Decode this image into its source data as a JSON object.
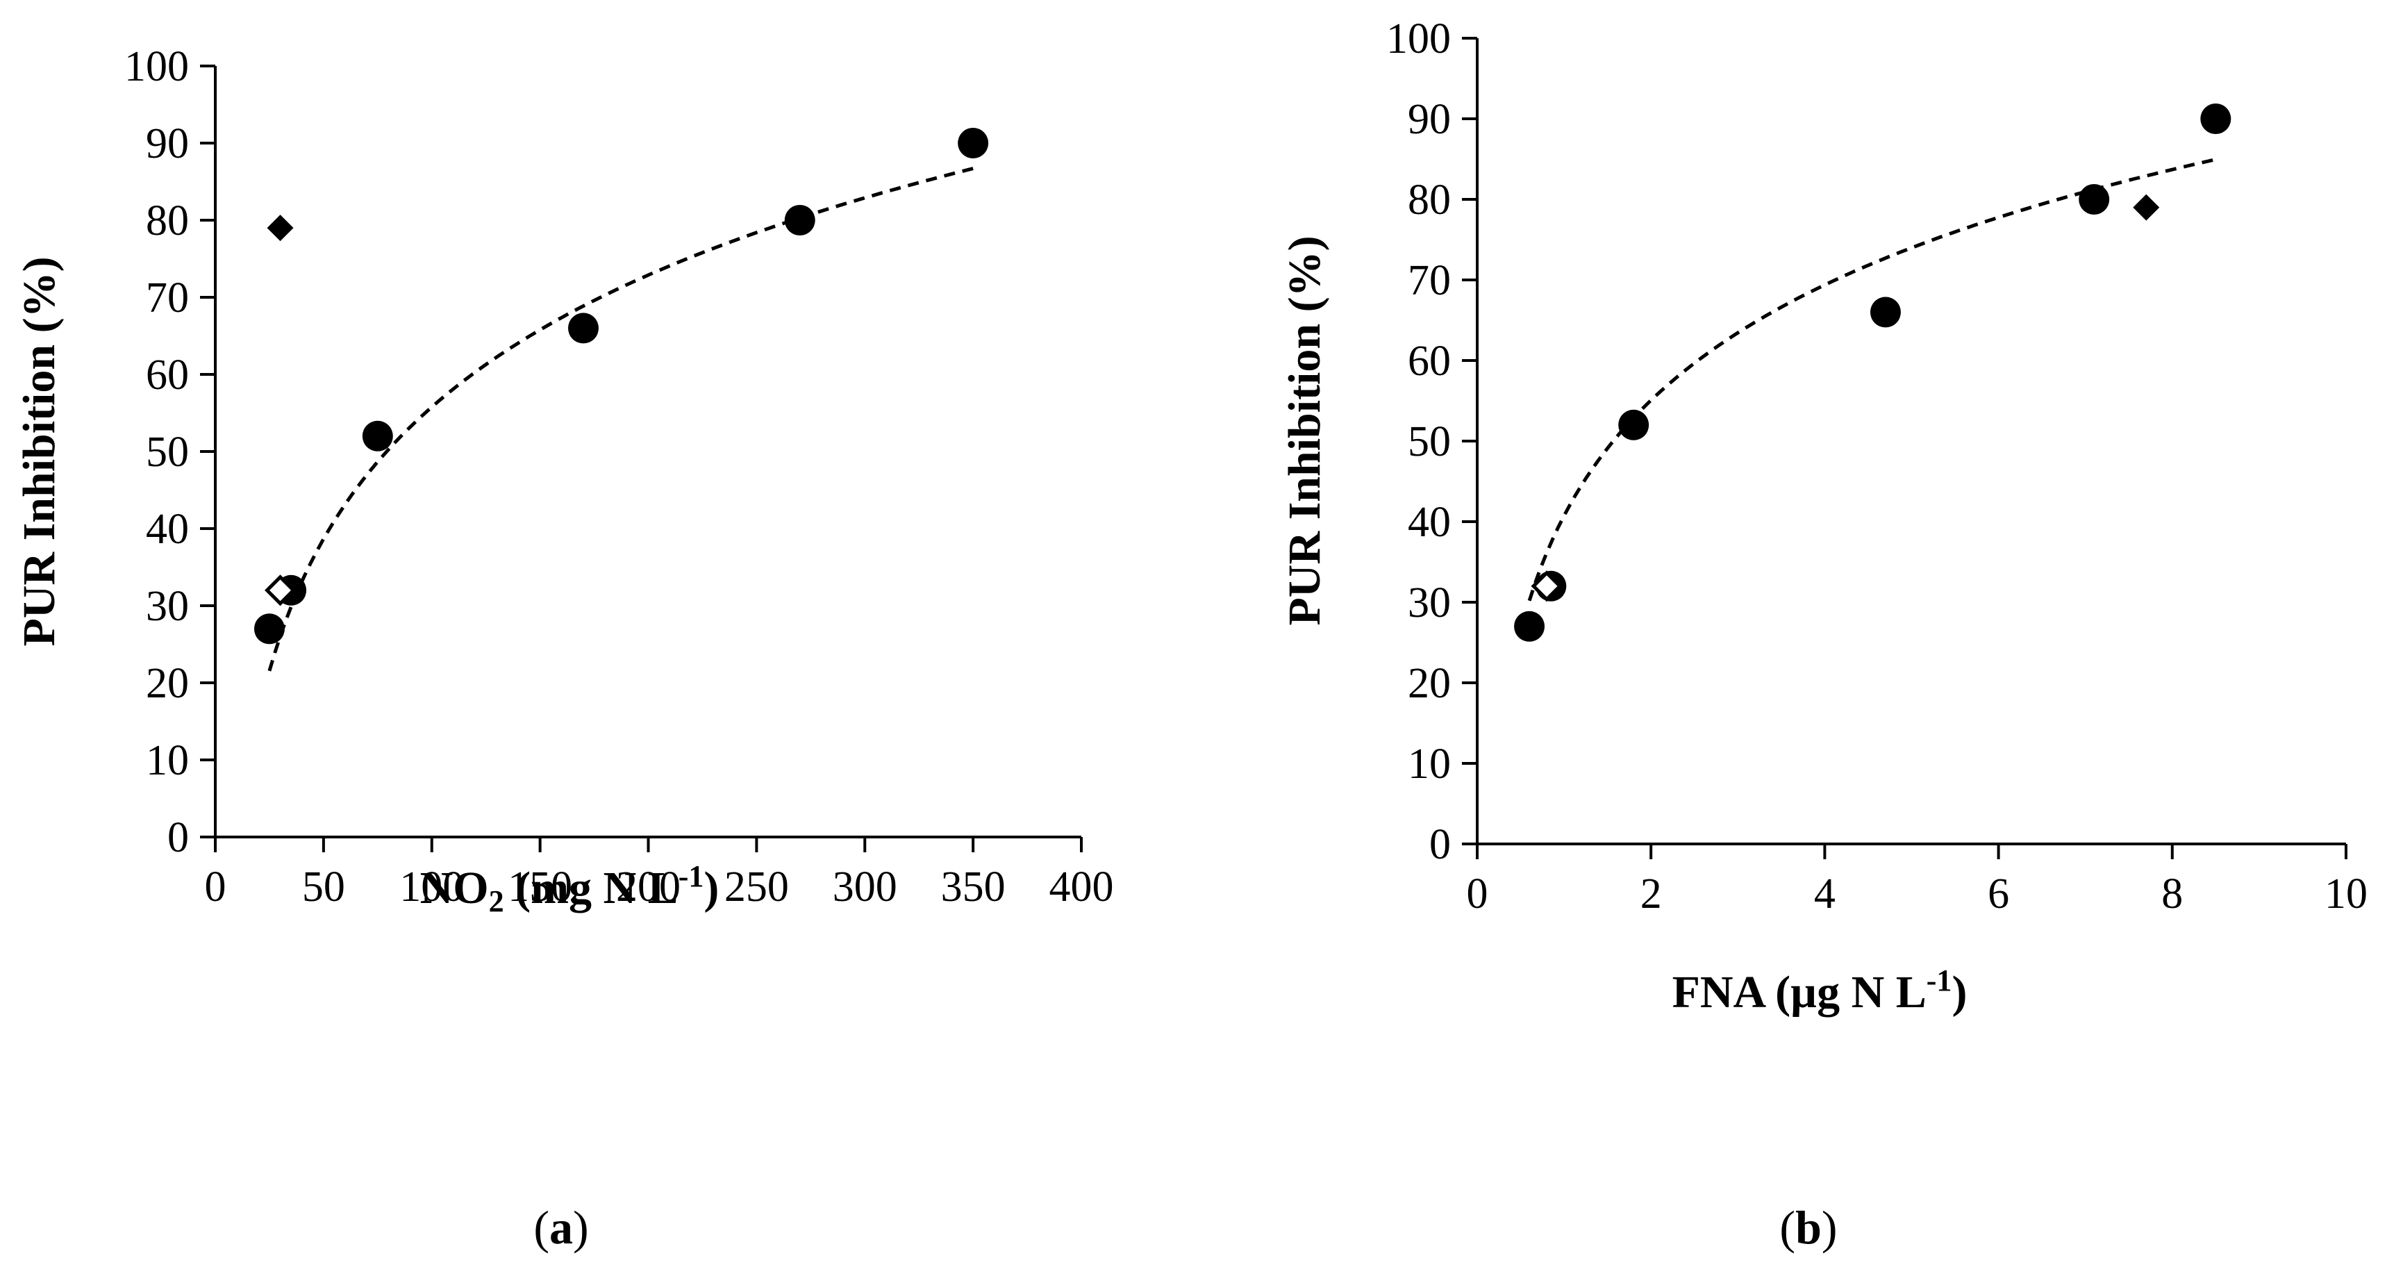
{
  "chart_data": [
    {
      "type": "scatter",
      "panel_label": "a",
      "xlabel": {
        "main": "NO",
        "sub": "2",
        "units_pre": " (mg N L",
        "sup": "-1",
        "units_post": ")"
      },
      "ylabel": "PUR Inhibition (%)",
      "xlim": [
        0,
        400
      ],
      "ylim": [
        0,
        100
      ],
      "xticks": [
        0,
        50,
        100,
        150,
        200,
        250,
        300,
        350,
        400
      ],
      "yticks": [
        0,
        10,
        20,
        30,
        40,
        50,
        60,
        70,
        80,
        90,
        100
      ],
      "grid": false,
      "series": [
        {
          "name": "circles",
          "marker": "circle-filled",
          "x": [
            25,
            35,
            75,
            170,
            270,
            350
          ],
          "y": [
            27,
            32,
            52,
            66,
            80,
            90
          ]
        },
        {
          "name": "diamond-filled",
          "marker": "diamond-filled",
          "x": [
            30
          ],
          "y": [
            79
          ]
        },
        {
          "name": "diamond-open",
          "marker": "diamond-open",
          "x": [
            30
          ],
          "y": [
            32
          ]
        }
      ],
      "trendline": {
        "type": "logarithmic",
        "a": 24.69,
        "b": -57.93,
        "x_range": [
          25,
          350
        ]
      }
    },
    {
      "type": "scatter",
      "panel_label": "b",
      "xlabel": {
        "main": "FNA",
        "sub": "",
        "units_pre": " (µg N L",
        "sup": "-1",
        "units_post": ")"
      },
      "ylabel": "PUR Inhibition (%)",
      "xlim": [
        0,
        10
      ],
      "ylim": [
        0,
        100
      ],
      "xticks": [
        0,
        2,
        4,
        6,
        8,
        10
      ],
      "yticks": [
        0,
        10,
        20,
        30,
        40,
        50,
        60,
        70,
        80,
        90,
        100
      ],
      "grid": false,
      "series": [
        {
          "name": "circles",
          "marker": "circle-filled",
          "x": [
            0.6,
            0.85,
            1.8,
            4.7,
            7.1,
            8.5
          ],
          "y": [
            27,
            32,
            52,
            66,
            80,
            90
          ]
        },
        {
          "name": "diamond-filled",
          "marker": "diamond-filled",
          "x": [
            7.7
          ],
          "y": [
            79
          ]
        },
        {
          "name": "diamond-open",
          "marker": "diamond-open",
          "x": [
            0.8
          ],
          "y": [
            32
          ]
        }
      ],
      "trendline": {
        "type": "logarithmic",
        "a": 20.66,
        "b": 40.74,
        "x_range": [
          0.6,
          8.5
        ]
      }
    }
  ]
}
